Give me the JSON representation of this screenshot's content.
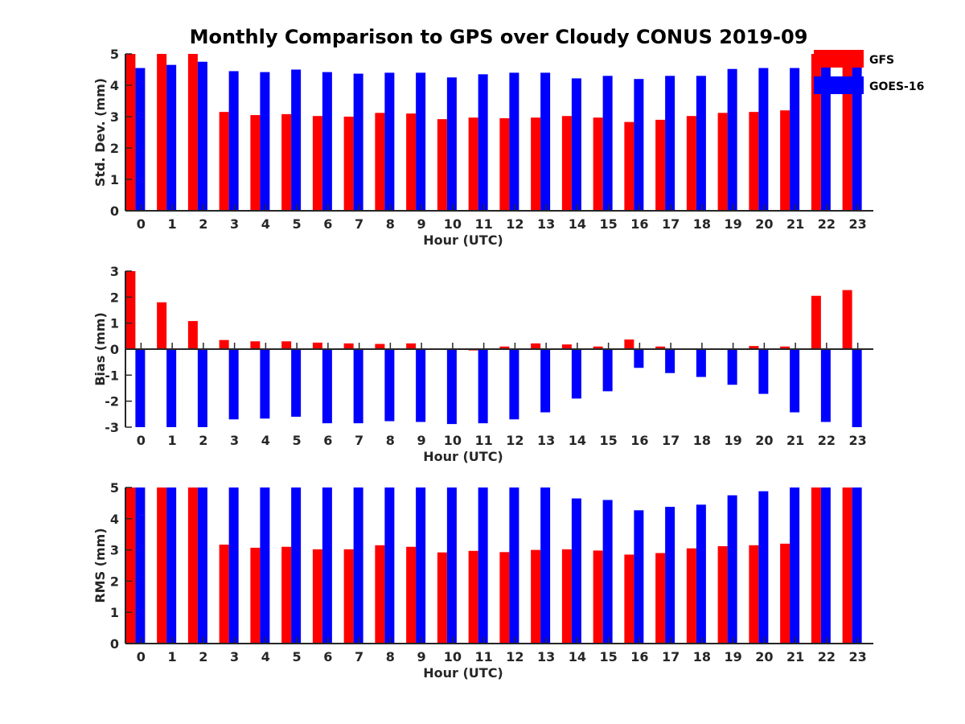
{
  "title": "Monthly Comparison to GPS over Cloudy CONUS 2019-09",
  "colors": {
    "GFS": "#ff0000",
    "GOES-16": "#0000ff",
    "axis": "#262626"
  },
  "legend": {
    "placement": "top-right",
    "items": [
      "GFS",
      "GOES-16"
    ]
  },
  "chart_data": [
    {
      "type": "bar",
      "ylabel": "Std. Dev. (mm)",
      "xlabel": "Hour (UTC)",
      "ylim": [
        0,
        5
      ],
      "yticks": [
        0,
        1,
        2,
        3,
        4,
        5
      ],
      "categories": [
        "0",
        "1",
        "2",
        "3",
        "4",
        "5",
        "6",
        "7",
        "8",
        "9",
        "10",
        "11",
        "12",
        "13",
        "14",
        "15",
        "16",
        "17",
        "18",
        "19",
        "20",
        "21",
        "22",
        "23"
      ],
      "series": [
        {
          "name": "GFS",
          "values": [
            5,
            5,
            5,
            3.15,
            3.05,
            3.08,
            3.02,
            3.0,
            3.12,
            3.1,
            2.92,
            2.97,
            2.95,
            2.97,
            3.02,
            2.97,
            2.83,
            2.9,
            3.02,
            3.12,
            3.15,
            3.2,
            5,
            5
          ]
        },
        {
          "name": "GOES-16",
          "values": [
            4.55,
            4.65,
            4.75,
            4.45,
            4.42,
            4.5,
            4.42,
            4.37,
            4.4,
            4.4,
            4.25,
            4.35,
            4.4,
            4.4,
            4.22,
            4.3,
            4.2,
            4.3,
            4.3,
            4.52,
            4.55,
            4.55,
            4.72,
            5
          ]
        }
      ]
    },
    {
      "type": "bar",
      "ylabel": "Bias (mm)",
      "xlabel": "Hour (UTC)",
      "ylim": [
        -3,
        3
      ],
      "yticks": [
        -3,
        -2,
        -1,
        0,
        1,
        2,
        3
      ],
      "categories": [
        "0",
        "1",
        "2",
        "3",
        "4",
        "5",
        "6",
        "7",
        "8",
        "9",
        "10",
        "11",
        "12",
        "13",
        "14",
        "15",
        "16",
        "17",
        "18",
        "19",
        "20",
        "21",
        "22",
        "23"
      ],
      "series": [
        {
          "name": "GFS",
          "values": [
            3,
            1.8,
            1.08,
            0.35,
            0.3,
            0.3,
            0.25,
            0.22,
            0.2,
            0.22,
            0.03,
            -0.05,
            0.1,
            0.22,
            0.18,
            0.1,
            0.37,
            0.1,
            -0.03,
            0.0,
            0.12,
            0.1,
            2.05,
            2.27
          ]
        },
        {
          "name": "GOES-16",
          "values": [
            -3,
            -3,
            -3,
            -2.7,
            -2.67,
            -2.6,
            -2.85,
            -2.85,
            -2.77,
            -2.8,
            -2.88,
            -2.85,
            -2.7,
            -2.43,
            -1.9,
            -1.62,
            -0.72,
            -0.92,
            -1.07,
            -1.37,
            -1.72,
            -2.43,
            -2.8,
            -3
          ]
        }
      ]
    },
    {
      "type": "bar",
      "ylabel": "RMS (mm)",
      "xlabel": "Hour (UTC)",
      "ylim": [
        0,
        5
      ],
      "yticks": [
        0,
        1,
        2,
        3,
        4,
        5
      ],
      "categories": [
        "0",
        "1",
        "2",
        "3",
        "4",
        "5",
        "6",
        "7",
        "8",
        "9",
        "10",
        "11",
        "12",
        "13",
        "14",
        "15",
        "16",
        "17",
        "18",
        "19",
        "20",
        "21",
        "22",
        "23"
      ],
      "series": [
        {
          "name": "GFS",
          "values": [
            5,
            5,
            5,
            3.17,
            3.07,
            3.1,
            3.02,
            3.02,
            3.15,
            3.1,
            2.92,
            2.97,
            2.93,
            3.0,
            3.02,
            2.98,
            2.85,
            2.9,
            3.05,
            3.12,
            3.15,
            3.2,
            5,
            5
          ]
        },
        {
          "name": "GOES-16",
          "values": [
            5,
            5,
            5,
            5,
            5,
            5,
            5,
            5,
            5,
            5,
            5,
            5,
            5,
            5,
            4.65,
            4.6,
            4.27,
            4.38,
            4.45,
            4.75,
            4.88,
            5,
            5,
            5
          ]
        }
      ]
    }
  ]
}
